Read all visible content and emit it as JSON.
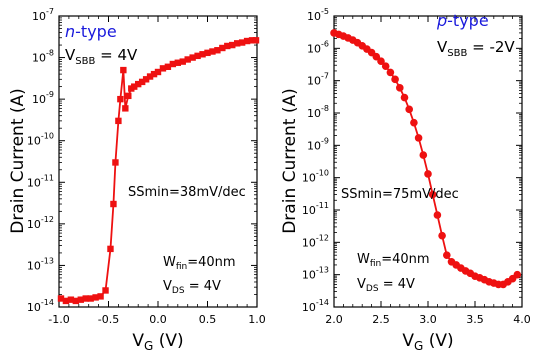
{
  "chart_data": [
    {
      "type": "scatter",
      "panel_title": "n-type",
      "panel_title_prefix": "n",
      "panel_title_suffix": "-type",
      "bias": {
        "main": "V",
        "sub": "SBB",
        "value": " = 4V"
      },
      "annotation_ss": "SSmin=38mV/dec",
      "annotation_w": {
        "main": "W",
        "sub": "fin",
        "value": "=40nm"
      },
      "annotation_vds": {
        "main": "V",
        "sub": "DS",
        "value": " = 4V"
      },
      "ylabel": "Drain Current (A)",
      "xlabel": {
        "main": "V",
        "sub": "G",
        "unit": " (V)"
      },
      "xlim": [
        -1.0,
        1.0
      ],
      "ylim_log10": [
        -14,
        -7
      ],
      "xticks": [
        "-1.0",
        "-0.5",
        "0.0",
        "0.5",
        "1.0"
      ],
      "xtick_values": [
        -1.0,
        -0.5,
        0.0,
        0.5,
        1.0
      ],
      "yticks_exp": [
        "-14",
        "-13",
        "-12",
        "-11",
        "-10",
        "-9",
        "-8",
        "-7"
      ],
      "marker": "square",
      "color": "#ee1111",
      "x": [
        -0.98,
        -0.93,
        -0.88,
        -0.83,
        -0.78,
        -0.73,
        -0.68,
        -0.63,
        -0.58,
        -0.53,
        -0.48,
        -0.45,
        -0.43,
        -0.4,
        -0.38,
        -0.35,
        -0.33,
        -0.3,
        -0.27,
        -0.24,
        -0.2,
        -0.16,
        -0.12,
        -0.08,
        -0.04,
        0.0,
        0.05,
        0.1,
        0.15,
        0.2,
        0.25,
        0.3,
        0.35,
        0.4,
        0.45,
        0.5,
        0.55,
        0.6,
        0.65,
        0.7,
        0.75,
        0.8,
        0.85,
        0.9,
        0.95,
        0.99
      ],
      "y": [
        1.6e-14,
        1.4e-14,
        1.5e-14,
        1.4e-14,
        1.5e-14,
        1.6e-14,
        1.6e-14,
        1.7e-14,
        1.8e-14,
        2.5e-14,
        2.5e-13,
        3e-12,
        3e-11,
        3e-10,
        1e-09,
        5e-09,
        6e-10,
        1.2e-09,
        1.8e-09,
        2e-09,
        2.3e-09,
        2.6e-09,
        3e-09,
        3.5e-09,
        4e-09,
        4.5e-09,
        5.5e-09,
        6e-09,
        7e-09,
        7.5e-09,
        8e-09,
        9e-09,
        1e-08,
        1.1e-08,
        1.2e-08,
        1.3e-08,
        1.4e-08,
        1.5e-08,
        1.7e-08,
        1.9e-08,
        2e-08,
        2.2e-08,
        2.3e-08,
        2.5e-08,
        2.6e-08,
        2.6e-08
      ]
    },
    {
      "type": "scatter",
      "panel_title": "p-type",
      "panel_title_prefix": "p",
      "panel_title_suffix": "-type",
      "bias": {
        "main": "V",
        "sub": "SBB",
        "value": " = -2V"
      },
      "annotation_ss": "SSmin=75mV/dec",
      "annotation_w": {
        "main": "W",
        "sub": "fin",
        "value": "=40nm"
      },
      "annotation_vds": {
        "main": "V",
        "sub": "DS",
        "value": " = 4V"
      },
      "ylabel": "Drain Current (A)",
      "xlabel": {
        "main": "V",
        "sub": "G",
        "unit": " (V)"
      },
      "xlim": [
        2.0,
        4.0
      ],
      "ylim_log10": [
        -14,
        -5
      ],
      "xticks": [
        "2.0",
        "2.5",
        "3.0",
        "3.5",
        "4.0"
      ],
      "xtick_values": [
        2.0,
        2.5,
        3.0,
        3.5,
        4.0
      ],
      "yticks_exp": [
        "-14",
        "-13",
        "-12",
        "-11",
        "-10",
        "-9",
        "-8",
        "-7",
        "-6",
        "-5"
      ],
      "marker": "circle",
      "color": "#ee1111",
      "x": [
        2.0,
        2.05,
        2.1,
        2.15,
        2.2,
        2.25,
        2.3,
        2.35,
        2.4,
        2.45,
        2.5,
        2.55,
        2.6,
        2.65,
        2.7,
        2.75,
        2.8,
        2.85,
        2.9,
        2.95,
        3.0,
        3.05,
        3.1,
        3.15,
        3.2,
        3.25,
        3.3,
        3.35,
        3.4,
        3.45,
        3.5,
        3.55,
        3.6,
        3.65,
        3.7,
        3.75,
        3.8,
        3.85,
        3.9,
        3.95
      ],
      "y": [
        3e-06,
        2.7e-06,
        2.4e-06,
        2.1e-06,
        1.8e-06,
        1.5e-06,
        1.2e-06,
        9.5e-07,
        7.4e-07,
        5.5e-07,
        4e-07,
        2.8e-07,
        1.8e-07,
        1.1e-07,
        6e-08,
        3e-08,
        1.3e-08,
        5e-09,
        1.7e-09,
        5e-10,
        1.3e-10,
        3e-11,
        7e-12,
        1.6e-12,
        4e-13,
        2.5e-13,
        2e-13,
        1.6e-13,
        1.3e-13,
        1.1e-13,
        9e-14,
        8e-14,
        7e-14,
        6e-14,
        5.5e-14,
        5e-14,
        5e-14,
        6e-14,
        7.5e-14,
        1e-13
      ]
    }
  ]
}
